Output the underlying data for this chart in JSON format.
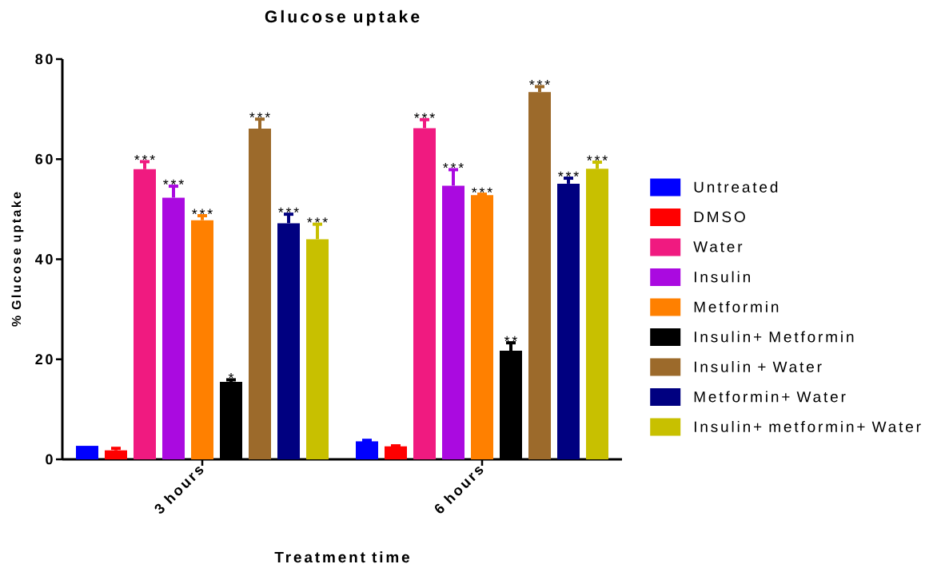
{
  "chart_data": {
    "type": "bar",
    "title": "Glucose uptake",
    "xlabel": "Treatment time",
    "ylabel": "% Glucose uptake",
    "categories": [
      "3 hours",
      "6 hours"
    ],
    "series": [
      {
        "name": "Untreated",
        "color": "#0000ff",
        "values": [
          2.7,
          3.6
        ],
        "errors": [
          null,
          [
            3.6,
            3.8
          ]
        ],
        "value_labels": [
          null,
          null
        ]
      },
      {
        "name": "DMSO",
        "color": "#ff0000",
        "values": [
          1.8,
          2.6
        ],
        "errors": [
          [
            1.8,
            2.2
          ],
          [
            2.6,
            2.7
          ]
        ],
        "value_labels": [
          null,
          null
        ]
      },
      {
        "name": "Water",
        "color": "#f01a80",
        "values": [
          58.0,
          66.2
        ],
        "errors": [
          [
            58.0,
            59.5
          ],
          [
            66.2,
            67.9
          ]
        ],
        "value_labels": [
          "***",
          "***"
        ]
      },
      {
        "name": "Insulin",
        "color": "#aa0ae0",
        "values": [
          52.3,
          54.7
        ],
        "errors": [
          [
            52.3,
            54.6
          ],
          [
            54.7,
            57.9
          ]
        ],
        "value_labels": [
          "***",
          "***"
        ]
      },
      {
        "name": "Metformin",
        "color": "#ff8000",
        "values": [
          47.8,
          52.8
        ],
        "errors": [
          [
            47.8,
            48.7
          ],
          [
            52.8,
            53.0
          ]
        ],
        "value_labels": [
          "***",
          "***"
        ]
      },
      {
        "name": "Insulin+ Metformin",
        "color": "#000000",
        "values": [
          15.5,
          21.7
        ],
        "errors": [
          [
            15.5,
            15.9
          ],
          [
            21.7,
            23.3
          ]
        ],
        "value_labels": [
          "*",
          "**"
        ]
      },
      {
        "name": "Insulin + Water",
        "color": "#9c6a2b",
        "values": [
          66.1,
          73.4
        ],
        "errors": [
          [
            66.1,
            68.0
          ],
          [
            73.4,
            74.5
          ]
        ],
        "value_labels": [
          "***",
          "***"
        ]
      },
      {
        "name": "Metformin+ Water",
        "color": "#000080",
        "values": [
          47.2,
          55.1
        ],
        "errors": [
          [
            47.2,
            49.0
          ],
          [
            55.1,
            56.2
          ]
        ],
        "value_labels": [
          "***",
          "***"
        ]
      },
      {
        "name": "Insulin+ metformin+ Water",
        "color": "#c8c000",
        "values": [
          44.0,
          58.1
        ],
        "errors": [
          [
            44.0,
            47.0
          ],
          [
            58.1,
            59.4
          ]
        ],
        "value_labels": [
          "***",
          "***"
        ]
      }
    ],
    "ylim": [
      0,
      80
    ],
    "yticks": [
      0,
      20,
      40,
      60,
      80
    ],
    "legend": "right"
  }
}
